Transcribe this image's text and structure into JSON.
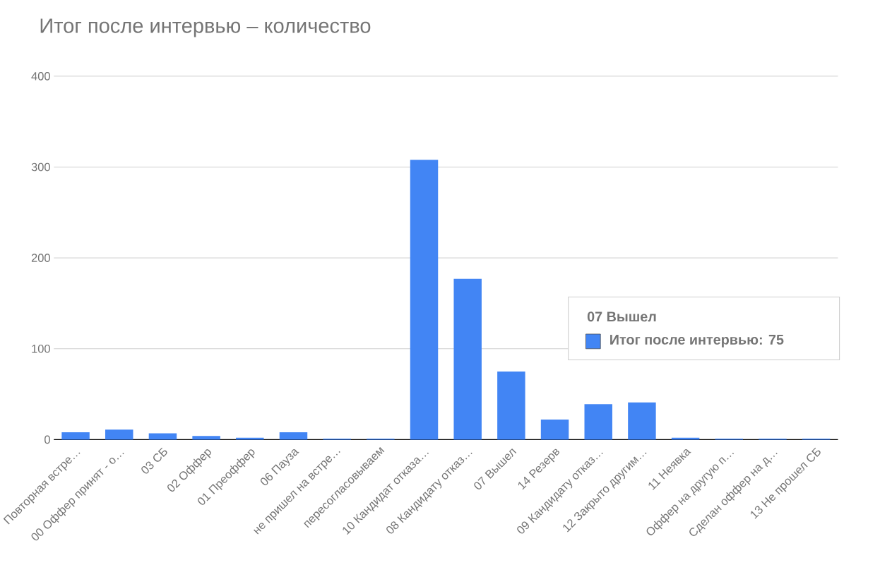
{
  "chart_data": {
    "type": "bar",
    "title": "Итог после интервью – количество",
    "categories": [
      "Повторная встре…",
      "00 Оффер принят - о…",
      "03 СБ",
      "02 Оффер",
      "01 Преоффер",
      "06 Пауза",
      "не пришел на встре…",
      "пересогласовываем",
      "10 Кандидат отказа…",
      "08 Кандидату отказ…",
      "07 Вышел",
      "14 Резерв",
      "09 Кандидату отказ…",
      "12 Закрыто другим…",
      "11 Неявка",
      "Оффер на другую п…",
      "Сделан оффер на д…",
      "13 Не прошел СБ"
    ],
    "values": [
      8,
      11,
      7,
      4,
      2,
      8,
      1,
      1,
      308,
      177,
      75,
      22,
      39,
      41,
      2,
      1,
      1,
      1
    ],
    "color": "#4285f4",
    "ylim": [
      0,
      400
    ],
    "yticks": [
      0,
      100,
      200,
      300,
      400
    ],
    "grid": "y",
    "annotations": [
      "07 Вышел",
      "Итог после интервью: **75**"
    ]
  }
}
